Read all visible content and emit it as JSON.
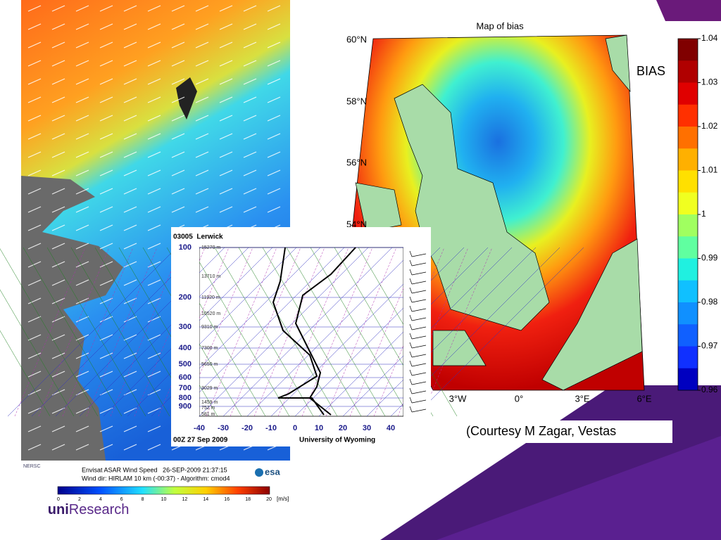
{
  "sar_panel": {
    "nersc_logo": "NERSC",
    "caption_line1": "Envisat ASAR Wind Speed   26-SEP-2009 21:37:15",
    "caption_line2": "Wind dir: HIRLAM 10 km (-00:37) - Algorithm: cmod4",
    "esa_logo": "esa",
    "colorbar_ticks": [
      "0",
      "2",
      "4",
      "6",
      "8",
      "10",
      "12",
      "14",
      "16",
      "18",
      "20"
    ],
    "colorbar_unit": "[m/s]"
  },
  "bias_map": {
    "title": "Map of bias",
    "lat_labels": [
      "60°N",
      "58°N",
      "56°N",
      "54°N"
    ],
    "lon_labels": [
      "3°W",
      "0°",
      "3°E",
      "6°E"
    ],
    "colorbar_ticks": [
      "1.04",
      "1.03",
      "1.02",
      "1.01",
      "1",
      "0.99",
      "0.98",
      "0.97",
      "0.96"
    ],
    "legend_label": "BIAS"
  },
  "sounding": {
    "station": "03005  Lerwick",
    "pressure_labels": [
      "100",
      "200",
      "300",
      "400",
      "500",
      "600",
      "700",
      "800",
      "900"
    ],
    "height_labels": [
      "15270 m",
      "13710 m",
      "11920 m",
      "10520 m",
      "9310 m",
      "7300 m",
      "5650 m",
      "3029 m",
      "1459 m",
      "752 m",
      "581 m"
    ],
    "temperature_ticks": [
      "-40",
      "-30",
      "-20",
      "-10",
      "0",
      "10",
      "20",
      "30",
      "40"
    ],
    "time": "00Z 27 Sep 2009",
    "source": "University of Wyoming"
  },
  "courtesy": "(Courtesy M Zagar, Vestas",
  "logo": {
    "uni": "uni",
    "research": "Research"
  }
}
